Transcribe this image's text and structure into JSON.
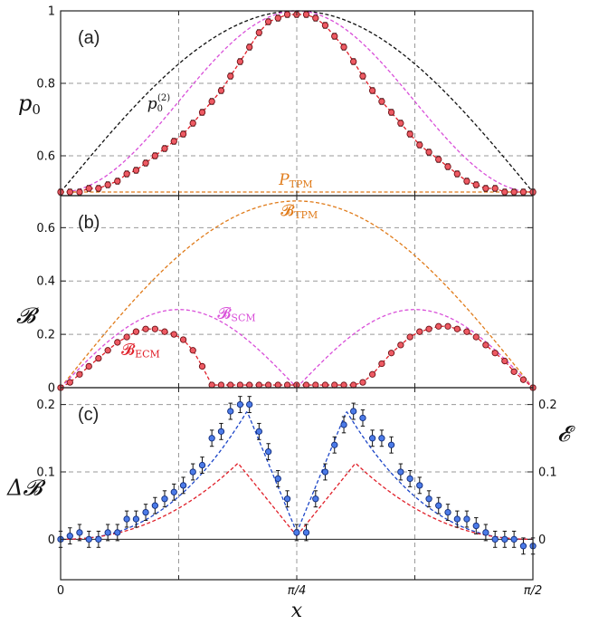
{
  "chart_data": [
    {
      "type": "line",
      "panel": "(a)",
      "ylabel": "p0",
      "xlim": [
        0,
        1.5708
      ],
      "ylim": [
        0.49,
        1.0
      ],
      "yticks": [
        "0.6",
        "0.8",
        "1"
      ],
      "ytick_values": [
        0.6,
        0.8,
        1.0
      ],
      "annotations": [
        {
          "text": "p0(2)",
          "x": 0.3,
          "y": 0.73,
          "color": "#111111"
        },
        {
          "text": "PTPM",
          "x": 0.78,
          "y": 0.535,
          "color": "#e07b1a"
        }
      ],
      "series": [
        {
          "name": "p0(2)",
          "style": "dashed",
          "color": "#111111",
          "formula": "0.5+0.5*sin(2x)"
        },
        {
          "name": "SCM",
          "style": "dashed",
          "color": "#d94fd9",
          "formula": "0.5+0.5*sin^2(2x)"
        },
        {
          "name": "ECM",
          "style": "dashed",
          "color": "#e0202a",
          "formula": "fit"
        },
        {
          "name": "PTPM",
          "style": "dashed",
          "color": "#e07b1a",
          "value": 0.5
        },
        {
          "name": "experiment",
          "style": "points",
          "color": "#e8454f",
          "x": [
            0.0,
            0.031,
            0.063,
            0.094,
            0.126,
            0.157,
            0.189,
            0.22,
            0.251,
            0.283,
            0.314,
            0.346,
            0.377,
            0.408,
            0.44,
            0.471,
            0.503,
            0.534,
            0.565,
            0.597,
            0.628,
            0.66,
            0.691,
            0.723,
            0.754,
            0.785,
            0.817,
            0.848,
            0.88,
            0.911,
            0.942,
            0.974,
            1.005,
            1.037,
            1.068,
            1.1,
            1.131,
            1.162,
            1.194,
            1.225,
            1.257,
            1.288,
            1.319,
            1.351,
            1.382,
            1.414,
            1.445,
            1.477,
            1.508,
            1.539,
            1.571
          ],
          "y": [
            0.5,
            0.5,
            0.5,
            0.51,
            0.51,
            0.52,
            0.53,
            0.55,
            0.56,
            0.58,
            0.6,
            0.62,
            0.64,
            0.66,
            0.69,
            0.72,
            0.75,
            0.78,
            0.82,
            0.86,
            0.9,
            0.94,
            0.97,
            0.98,
            0.99,
            0.99,
            0.99,
            0.98,
            0.96,
            0.93,
            0.9,
            0.86,
            0.82,
            0.78,
            0.75,
            0.72,
            0.69,
            0.66,
            0.63,
            0.61,
            0.59,
            0.57,
            0.55,
            0.53,
            0.52,
            0.51,
            0.51,
            0.5,
            0.5,
            0.5,
            0.5
          ],
          "err": 0.008
        }
      ]
    },
    {
      "type": "line",
      "panel": "(b)",
      "ylabel": "B",
      "xlim": [
        0,
        1.5708
      ],
      "ylim": [
        0,
        0.72
      ],
      "yticks": [
        "0",
        "0.2",
        "0.4",
        "0.6"
      ],
      "ytick_values": [
        0,
        0.2,
        0.4,
        0.6
      ],
      "annotations": [
        {
          "text": "BTPM",
          "x": 0.78,
          "y": 0.665,
          "color": "#e07b1a"
        },
        {
          "text": "BSCM",
          "x": 0.57,
          "y": 0.28,
          "color": "#d94fd9"
        },
        {
          "text": "BECM",
          "x": 0.25,
          "y": 0.145,
          "color": "#e0202a"
        }
      ],
      "series": [
        {
          "name": "BTPM",
          "style": "dashed",
          "color": "#e07b1a",
          "formula": "0.7*sin(2x)"
        },
        {
          "name": "BSCM",
          "style": "dashed",
          "color": "#d94fd9",
          "formula": "0.293*sin(4x) for x<pi/4"
        },
        {
          "name": "BECM",
          "style": "dashed",
          "color": "#e0202a",
          "formula": "fit"
        },
        {
          "name": "experiment",
          "style": "points",
          "color": "#e8454f",
          "x": [
            0.0,
            0.031,
            0.063,
            0.094,
            0.126,
            0.157,
            0.189,
            0.22,
            0.251,
            0.283,
            0.314,
            0.346,
            0.377,
            0.408,
            0.44,
            0.471,
            0.503,
            0.534,
            0.565,
            0.597,
            0.628,
            0.66,
            0.691,
            0.723,
            0.754,
            0.785,
            0.817,
            0.848,
            0.88,
            0.911,
            0.942,
            0.974,
            1.005,
            1.037,
            1.068,
            1.1,
            1.131,
            1.162,
            1.194,
            1.225,
            1.257,
            1.288,
            1.319,
            1.351,
            1.382,
            1.414,
            1.445,
            1.477,
            1.508,
            1.539,
            1.571
          ],
          "y": [
            0.0,
            0.02,
            0.05,
            0.08,
            0.11,
            0.14,
            0.17,
            0.19,
            0.21,
            0.22,
            0.22,
            0.21,
            0.2,
            0.18,
            0.14,
            0.08,
            0.01,
            0.01,
            0.01,
            0.01,
            0.01,
            0.01,
            0.01,
            0.01,
            0.01,
            0.01,
            0.01,
            0.01,
            0.01,
            0.01,
            0.01,
            0.01,
            0.02,
            0.05,
            0.09,
            0.13,
            0.16,
            0.19,
            0.21,
            0.22,
            0.23,
            0.23,
            0.22,
            0.21,
            0.19,
            0.16,
            0.13,
            0.1,
            0.06,
            0.03,
            0.0
          ],
          "err": 0.006
        }
      ]
    },
    {
      "type": "line",
      "panel": "(c)",
      "ylabel": "ΔB",
      "ylabel_right": "E",
      "xlabel": "x",
      "xlim": [
        0,
        1.5708
      ],
      "ylim": [
        -0.06,
        0.225
      ],
      "xticks": [
        "0",
        "π/4",
        "π/2"
      ],
      "xtick_values": [
        0,
        0.7854,
        1.5708
      ],
      "yticks": [
        "0",
        "0.1",
        "0.2"
      ],
      "ytick_values": [
        0,
        0.1,
        0.2
      ],
      "series": [
        {
          "name": "ΔB fit",
          "style": "dashed",
          "color": "#1d46c8",
          "formula": "fit"
        },
        {
          "name": "E",
          "style": "dashed",
          "color": "#e0202a",
          "formula": "fit"
        },
        {
          "name": "experiment",
          "style": "points",
          "color": "#3867e0",
          "x": [
            0.0,
            0.031,
            0.063,
            0.094,
            0.126,
            0.157,
            0.189,
            0.22,
            0.251,
            0.283,
            0.314,
            0.346,
            0.377,
            0.408,
            0.44,
            0.471,
            0.503,
            0.534,
            0.565,
            0.597,
            0.628,
            0.66,
            0.691,
            0.723,
            0.754,
            0.785,
            0.817,
            0.848,
            0.88,
            0.911,
            0.942,
            0.974,
            1.005,
            1.037,
            1.068,
            1.1,
            1.131,
            1.162,
            1.194,
            1.225,
            1.257,
            1.288,
            1.319,
            1.351,
            1.382,
            1.414,
            1.445,
            1.477,
            1.508,
            1.539,
            1.571
          ],
          "y": [
            0.0,
            0.005,
            0.01,
            0.0,
            0.0,
            0.01,
            0.01,
            0.03,
            0.03,
            0.04,
            0.05,
            0.06,
            0.07,
            0.08,
            0.1,
            0.11,
            0.15,
            0.16,
            0.19,
            0.2,
            0.2,
            0.16,
            0.13,
            0.09,
            0.06,
            0.01,
            0.01,
            0.06,
            0.1,
            0.14,
            0.17,
            0.19,
            0.18,
            0.15,
            0.15,
            0.14,
            0.1,
            0.09,
            0.08,
            0.06,
            0.05,
            0.04,
            0.03,
            0.03,
            0.02,
            0.01,
            0.0,
            0.0,
            0.0,
            -0.01,
            -0.01
          ],
          "err": 0.012
        }
      ]
    }
  ]
}
